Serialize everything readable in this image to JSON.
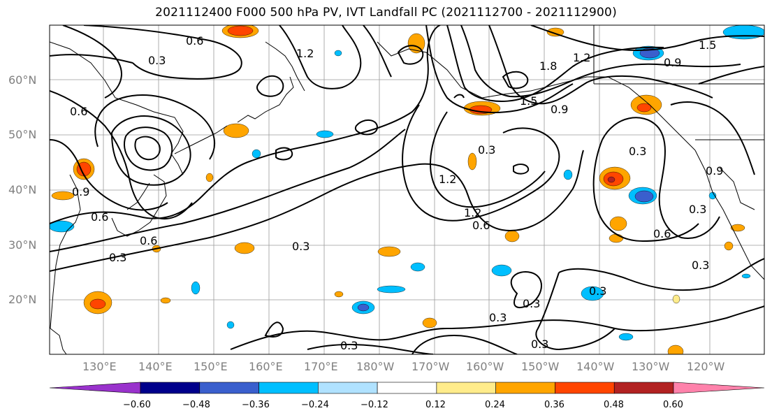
{
  "title": "2021112400 F000 500 hPa PV, IVT Landfall PC (2021112700 - 2021112900)",
  "lat_labels": [
    "60°N",
    "50°N",
    "40°N",
    "30°N",
    "20°N"
  ],
  "lon_labels": [
    "130°E",
    "140°E",
    "150°E",
    "160°E",
    "170°E",
    "180°W",
    "170°W",
    "160°W",
    "150°W",
    "140°W",
    "130°W",
    "120°W"
  ],
  "contour_labels": [
    "0.6",
    "0.3",
    "1.2",
    "1.5",
    "1.8",
    "0.9",
    "0.6",
    "0.3",
    "1.2",
    "0.3",
    "1.2",
    "0.6",
    "0.3",
    "0.3",
    "0.6",
    "0.3",
    "0.3",
    "0.6",
    "0.9",
    "0.3",
    "0.9",
    "0.6",
    "0.3",
    "0.3",
    "0.3",
    "1.2",
    "1.5",
    "0.9",
    "0.3"
  ],
  "colorbar": {
    "colors": [
      "#9932cc",
      "#00008b",
      "#3a5fcd",
      "#00bfff",
      "#b0e2ff",
      "#ffffff",
      "#ffec8b",
      "#ffa500",
      "#ff4500",
      "#b22222",
      "#ff82ab"
    ],
    "tick_labels": [
      "−0.60",
      "−0.48",
      "−0.36",
      "−0.24",
      "−0.12",
      "0.12",
      "0.24",
      "0.36",
      "0.48",
      "0.60"
    ]
  }
}
